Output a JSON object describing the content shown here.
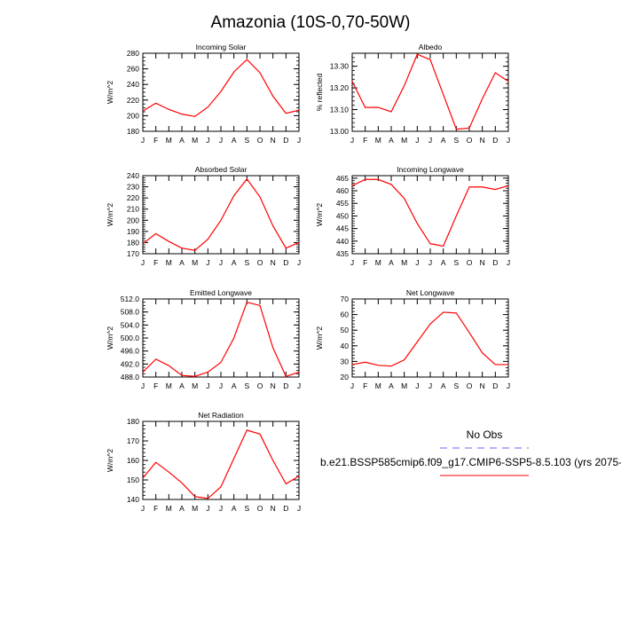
{
  "figure": {
    "title": "Amazonia (10S-0,70-50W)"
  },
  "legend": {
    "obs_label": "No Obs",
    "model_label": "b.e21.BSSP585cmip6.f09_g17.CMIP6-SSP5-8.5.103 (yrs 2075-",
    "obs_color": "#6666ff",
    "model_color": "#ff0000"
  },
  "months": [
    "J",
    "F",
    "M",
    "A",
    "M",
    "J",
    "J",
    "A",
    "S",
    "O",
    "N",
    "D",
    "J"
  ],
  "line_color": "#ff0000",
  "chart_data": [
    {
      "type": "line",
      "title": "Incoming Solar",
      "ylabel": "W/m^2",
      "ylim": [
        180,
        280
      ],
      "yticks": [
        180,
        200,
        220,
        240,
        260,
        280
      ],
      "ytick_labels": [
        "180",
        "200",
        "220",
        "240",
        "260",
        "280"
      ],
      "minor_step": 5,
      "values": [
        206,
        216,
        208,
        202,
        199,
        211,
        231,
        256,
        272,
        255,
        225,
        203,
        207
      ]
    },
    {
      "type": "line",
      "title": "Albedo",
      "ylabel": "% reflected",
      "ylim": [
        13.0,
        13.36
      ],
      "yticks": [
        13.0,
        13.1,
        13.2,
        13.3
      ],
      "ytick_labels": [
        "13.00",
        "13.10",
        "13.20",
        "13.30"
      ],
      "minor_step": 0.02,
      "values": [
        13.23,
        13.11,
        13.11,
        13.09,
        13.21,
        13.355,
        13.33,
        13.17,
        13.01,
        13.015,
        13.15,
        13.27,
        13.23
      ]
    },
    {
      "type": "line",
      "title": "Absorbed Solar",
      "ylabel": "W/m^2",
      "ylim": [
        170,
        240
      ],
      "yticks": [
        170,
        180,
        190,
        200,
        210,
        220,
        230,
        240
      ],
      "ytick_labels": [
        "170",
        "180",
        "190",
        "200",
        "210",
        "220",
        "230",
        "240"
      ],
      "minor_step": 2,
      "values": [
        179,
        188,
        181,
        175,
        173,
        183,
        200,
        222,
        237,
        221,
        195,
        175,
        180
      ]
    },
    {
      "type": "line",
      "title": "Incoming Longwave",
      "ylabel": "W/m^2",
      "ylim": [
        435,
        466
      ],
      "yticks": [
        435,
        440,
        445,
        450,
        455,
        460,
        465
      ],
      "ytick_labels": [
        "435",
        "440",
        "445",
        "450",
        "455",
        "460",
        "465"
      ],
      "minor_step": 1,
      "values": [
        462,
        464.5,
        464.5,
        462.5,
        457,
        447,
        439,
        438,
        450,
        461.5,
        461.5,
        460.5,
        462
      ]
    },
    {
      "type": "line",
      "title": "Emitted Longwave",
      "ylabel": "W/m^2",
      "ylim": [
        488,
        512
      ],
      "yticks": [
        488,
        492,
        496,
        500,
        504,
        508,
        512
      ],
      "ytick_labels": [
        "488.0",
        "492.0",
        "496.0",
        "500.0",
        "504.0",
        "508.0",
        "512.0"
      ],
      "minor_step": 1,
      "values": [
        489.5,
        493.5,
        491.5,
        488.5,
        488.2,
        489.5,
        492.5,
        500,
        511,
        510,
        497,
        488.2,
        489.5
      ]
    },
    {
      "type": "line",
      "title": "Net Longwave",
      "ylabel": "W/m^2",
      "ylim": [
        20,
        70
      ],
      "yticks": [
        20,
        30,
        40,
        50,
        60,
        70
      ],
      "ytick_labels": [
        "20",
        "30",
        "40",
        "50",
        "60",
        "70"
      ],
      "minor_step": 2,
      "values": [
        28,
        29.5,
        27.5,
        27,
        31,
        42.5,
        54,
        61.5,
        61,
        48.5,
        35.5,
        28,
        28
      ]
    },
    {
      "type": "line",
      "title": "Net Radiation",
      "ylabel": "W/m^2",
      "ylim": [
        140,
        180
      ],
      "yticks": [
        140,
        150,
        160,
        170,
        180
      ],
      "ytick_labels": [
        "140",
        "150",
        "160",
        "170",
        "180"
      ],
      "minor_step": 2,
      "values": [
        151,
        159,
        154,
        148.5,
        141.5,
        140.5,
        146.5,
        161,
        175.5,
        173.5,
        160,
        148,
        152
      ]
    }
  ]
}
